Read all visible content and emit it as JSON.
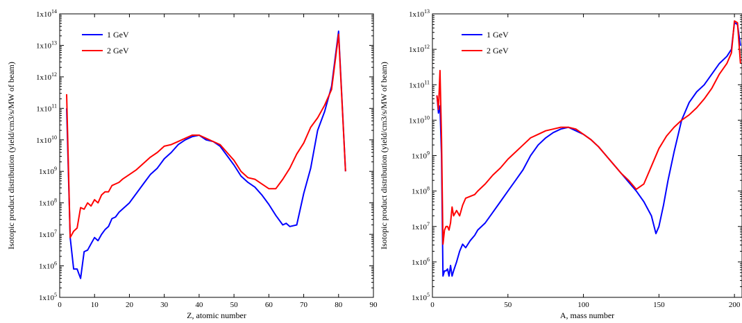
{
  "chart_data": [
    {
      "type": "line",
      "xlabel": "Z, atomic number",
      "ylabel": "Isotopic product distribution (yield/cm3/s/MW of beam)",
      "xlim": [
        0,
        90
      ],
      "ylim_exp": [
        5,
        14
      ],
      "y_scale": "log",
      "x_ticks": [
        0,
        10,
        20,
        30,
        40,
        50,
        60,
        70,
        80,
        90
      ],
      "y_tick_base": "1x10",
      "y_tick_exponents": [
        "5",
        "6",
        "7",
        "8",
        "9",
        "10",
        "11",
        "12",
        "13",
        "14"
      ],
      "legend": "top-left",
      "series": [
        {
          "name": "1 GeV",
          "color": "#0000ff",
          "x": [
            2,
            3,
            4,
            5,
            6,
            7,
            8,
            9,
            10,
            11,
            12,
            13,
            14,
            15,
            16,
            17,
            18,
            20,
            22,
            24,
            26,
            28,
            30,
            32,
            34,
            36,
            38,
            40,
            42,
            44,
            46,
            48,
            50,
            52,
            54,
            56,
            58,
            60,
            62,
            64,
            65,
            66,
            68,
            70,
            72,
            74,
            76,
            78,
            80,
            82
          ],
          "log_y": [
            11.0,
            6.9,
            5.9,
            5.9,
            5.6,
            6.45,
            6.5,
            6.7,
            6.9,
            6.8,
            7.0,
            7.15,
            7.25,
            7.5,
            7.55,
            7.7,
            7.8,
            8.0,
            8.3,
            8.6,
            8.9,
            9.1,
            9.4,
            9.6,
            9.85,
            10.0,
            10.1,
            10.15,
            10.0,
            9.95,
            9.8,
            9.5,
            9.2,
            8.85,
            8.65,
            8.5,
            8.25,
            7.95,
            7.6,
            7.3,
            7.35,
            7.25,
            7.3,
            8.3,
            9.1,
            10.3,
            10.9,
            11.7,
            13.45,
            9.0
          ]
        },
        {
          "name": "2 GeV",
          "color": "#ff0000",
          "x": [
            2,
            3,
            4,
            5,
            6,
            7,
            8,
            9,
            10,
            11,
            12,
            13,
            14,
            15,
            16,
            17,
            18,
            20,
            22,
            24,
            26,
            28,
            30,
            32,
            34,
            36,
            38,
            40,
            42,
            44,
            46,
            48,
            50,
            52,
            54,
            56,
            58,
            60,
            62,
            64,
            66,
            68,
            70,
            72,
            74,
            76,
            78,
            80,
            82
          ],
          "log_y": [
            11.45,
            6.9,
            7.1,
            7.2,
            7.85,
            7.8,
            8.0,
            7.9,
            8.1,
            8.0,
            8.25,
            8.35,
            8.35,
            8.55,
            8.6,
            8.65,
            8.75,
            8.9,
            9.05,
            9.25,
            9.45,
            9.6,
            9.8,
            9.85,
            9.95,
            10.05,
            10.15,
            10.15,
            10.05,
            9.95,
            9.85,
            9.6,
            9.35,
            9.0,
            8.8,
            8.75,
            8.6,
            8.45,
            8.45,
            8.75,
            9.1,
            9.55,
            9.9,
            10.4,
            10.7,
            11.1,
            11.6,
            13.35,
            9.0
          ]
        }
      ]
    },
    {
      "type": "line",
      "xlabel": "A, mass number",
      "ylabel": "Isotopic product distribution (yield/cm3/s/MW of beam)",
      "xlim": [
        0,
        205
      ],
      "ylim_exp": [
        5,
        13
      ],
      "y_scale": "log",
      "x_ticks": [
        0,
        50,
        100,
        150,
        200
      ],
      "y_tick_base": "1x10",
      "y_tick_exponents": [
        "5",
        "6",
        "7",
        "8",
        "9",
        "10",
        "11",
        "12",
        "13"
      ],
      "legend": "top-left",
      "series": [
        {
          "name": "1 GeV",
          "color": "#0000ff",
          "x": [
            3,
            4,
            5,
            6,
            7,
            8,
            9,
            10,
            11,
            12,
            13,
            14,
            16,
            18,
            20,
            22,
            25,
            28,
            30,
            35,
            40,
            45,
            50,
            55,
            60,
            65,
            70,
            75,
            80,
            85,
            90,
            95,
            100,
            105,
            110,
            115,
            120,
            125,
            130,
            135,
            140,
            145,
            148,
            150,
            153,
            156,
            160,
            165,
            170,
            175,
            180,
            185,
            190,
            195,
            198,
            200,
            202,
            204
          ],
          "log_y": [
            10.7,
            10.2,
            10.4,
            9.0,
            5.6,
            5.75,
            5.75,
            5.8,
            5.6,
            5.9,
            5.6,
            5.75,
            6.0,
            6.3,
            6.5,
            6.4,
            6.6,
            6.75,
            6.9,
            7.1,
            7.4,
            7.7,
            8.0,
            8.3,
            8.6,
            9.0,
            9.3,
            9.5,
            9.65,
            9.75,
            9.8,
            9.7,
            9.6,
            9.45,
            9.25,
            9.0,
            8.75,
            8.5,
            8.25,
            8.0,
            7.7,
            7.3,
            6.8,
            7.0,
            7.6,
            8.3,
            9.1,
            10.0,
            10.5,
            10.8,
            11.0,
            11.3,
            11.6,
            11.8,
            12.0,
            12.75,
            12.7,
            12.1
          ]
        },
        {
          "name": "2 GeV",
          "color": "#ff0000",
          "x": [
            3,
            4,
            5,
            6,
            7,
            8,
            9,
            10,
            11,
            12,
            13,
            14,
            16,
            18,
            20,
            22,
            25,
            28,
            30,
            35,
            40,
            45,
            50,
            55,
            60,
            65,
            70,
            75,
            80,
            85,
            90,
            95,
            100,
            105,
            110,
            115,
            120,
            125,
            130,
            135,
            140,
            145,
            150,
            155,
            160,
            165,
            170,
            175,
            180,
            185,
            190,
            195,
            198,
            200,
            202,
            204
          ],
          "log_y": [
            10.7,
            10.3,
            11.4,
            9.5,
            6.5,
            6.9,
            7.0,
            7.0,
            6.9,
            7.1,
            7.55,
            7.3,
            7.45,
            7.3,
            7.6,
            7.8,
            7.85,
            7.9,
            8.0,
            8.2,
            8.45,
            8.65,
            8.9,
            9.1,
            9.3,
            9.5,
            9.6,
            9.7,
            9.75,
            9.8,
            9.8,
            9.75,
            9.6,
            9.45,
            9.25,
            9.0,
            8.75,
            8.5,
            8.3,
            8.05,
            8.2,
            8.7,
            9.2,
            9.55,
            9.8,
            10.0,
            10.15,
            10.35,
            10.6,
            10.9,
            11.3,
            11.6,
            11.9,
            12.8,
            12.75,
            11.6
          ]
        }
      ]
    }
  ]
}
